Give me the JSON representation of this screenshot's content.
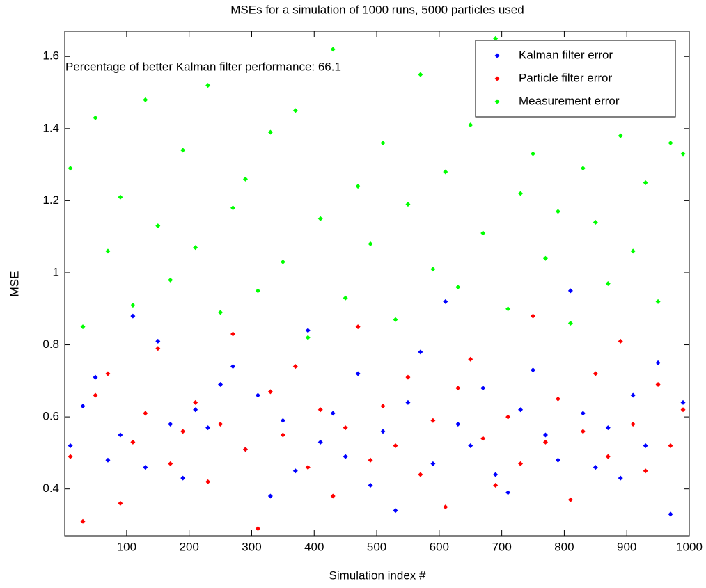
{
  "chart_data": {
    "type": "scatter",
    "title": "MSEs for a simulation of 1000 runs, 5000 particles used",
    "xlabel": "Simulation index #",
    "ylabel": "MSE",
    "annotation": "Percentage of better Kalman filter performance: 66.1",
    "legend": "upper right",
    "xlim": [
      1,
      1000
    ],
    "xticks": [
      100,
      200,
      300,
      400,
      500,
      600,
      700,
      800,
      900,
      1000
    ],
    "ylim": [
      0.27,
      1.67
    ],
    "yticks": [
      0.4,
      0.6,
      0.8,
      1,
      1.2,
      1.4,
      1.6
    ],
    "x": [
      10,
      30,
      50,
      70,
      90,
      110,
      130,
      150,
      170,
      190,
      210,
      230,
      250,
      270,
      290,
      310,
      330,
      350,
      370,
      390,
      410,
      430,
      450,
      470,
      490,
      510,
      530,
      550,
      570,
      590,
      610,
      630,
      650,
      670,
      690,
      710,
      730,
      750,
      770,
      790,
      810,
      830,
      850,
      870,
      890,
      910,
      930,
      950,
      970,
      990
    ],
    "series": [
      {
        "name": "Kalman filter error",
        "color": "#0000ff",
        "values": [
          0.52,
          0.63,
          0.71,
          0.48,
          0.55,
          0.88,
          0.46,
          0.81,
          0.58,
          0.43,
          0.62,
          0.57,
          0.69,
          0.74,
          0.51,
          0.66,
          0.38,
          0.59,
          0.45,
          0.84,
          0.53,
          0.61,
          0.49,
          0.72,
          0.41,
          0.56,
          0.34,
          0.64,
          0.78,
          0.47,
          0.92,
          0.58,
          0.52,
          0.68,
          0.44,
          0.39,
          0.62,
          0.73,
          0.55,
          0.48,
          0.95,
          0.61,
          0.46,
          0.57,
          0.43,
          0.66,
          0.52,
          0.75,
          0.33,
          0.64
        ]
      },
      {
        "name": "Particle filter error",
        "color": "#ff0000",
        "values": [
          0.49,
          0.31,
          0.66,
          0.72,
          0.36,
          0.53,
          0.61,
          0.79,
          0.47,
          0.56,
          0.64,
          0.42,
          0.58,
          0.83,
          0.51,
          0.29,
          0.67,
          0.55,
          0.74,
          0.46,
          0.62,
          0.38,
          0.57,
          0.85,
          0.48,
          0.63,
          0.52,
          0.71,
          0.44,
          0.59,
          0.35,
          0.68,
          0.76,
          0.54,
          0.41,
          0.6,
          0.47,
          0.88,
          0.53,
          0.65,
          0.37,
          0.56,
          0.72,
          0.49,
          0.81,
          0.58,
          0.45,
          0.69,
          0.52,
          0.62
        ]
      },
      {
        "name": "Measurement error",
        "color": "#00ff00",
        "values": [
          1.29,
          0.85,
          1.43,
          1.06,
          1.21,
          0.91,
          1.48,
          1.13,
          0.98,
          1.34,
          1.07,
          1.52,
          0.89,
          1.18,
          1.26,
          0.95,
          1.39,
          1.03,
          1.45,
          0.82,
          1.15,
          1.62,
          0.93,
          1.24,
          1.08,
          1.36,
          0.87,
          1.19,
          1.55,
          1.01,
          1.28,
          0.96,
          1.41,
          1.11,
          1.65,
          0.9,
          1.22,
          1.33,
          1.04,
          1.17,
          0.86,
          1.29,
          1.14,
          0.97,
          1.38,
          1.06,
          1.25,
          0.92,
          1.36,
          1.33
        ]
      }
    ]
  }
}
